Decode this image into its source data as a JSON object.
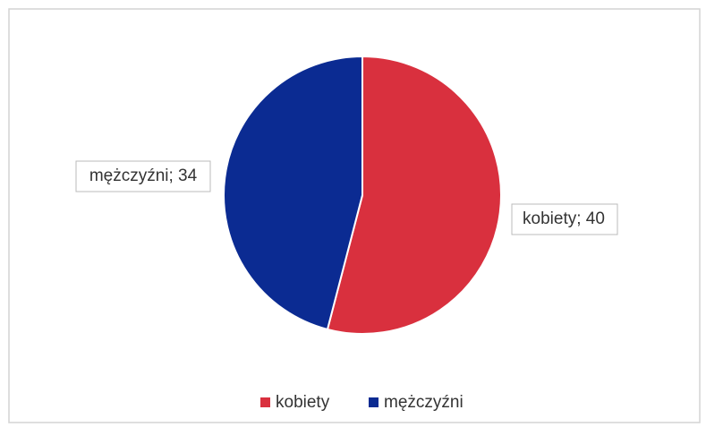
{
  "chart_data": {
    "type": "pie",
    "categories": [
      "kobiety",
      "mężczyźni"
    ],
    "values": [
      40,
      34
    ],
    "value_labels": [
      "kobiety; 40",
      "mężczyźni; 34"
    ],
    "colors": [
      "#d9303e",
      "#0b2b92"
    ],
    "legend": "bottom"
  }
}
